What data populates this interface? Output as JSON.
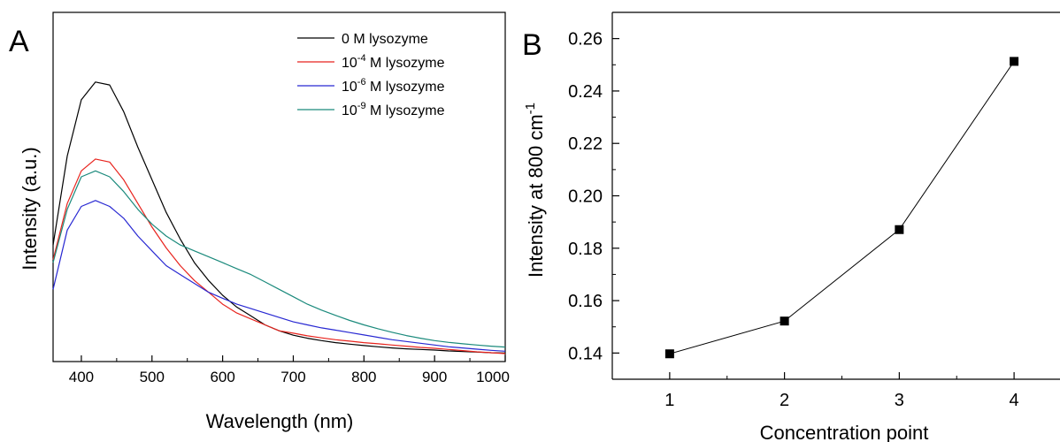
{
  "chart_data": [
    {
      "panel_label": "A",
      "type": "line",
      "xlabel": "Wavelength (nm)",
      "ylabel": "Intensity (a.u.)",
      "xlim": [
        360,
        1000
      ],
      "ylim": [
        0,
        1
      ],
      "x_ticks": [
        400,
        500,
        600,
        700,
        800,
        900,
        1000
      ],
      "y_ticks_shown": false,
      "grid": false,
      "legend_position": "top-right",
      "x": [
        360,
        380,
        400,
        420,
        440,
        460,
        480,
        500,
        520,
        540,
        560,
        580,
        600,
        620,
        640,
        660,
        680,
        700,
        720,
        740,
        760,
        780,
        800,
        820,
        840,
        860,
        880,
        900,
        920,
        940,
        960,
        980,
        1000
      ],
      "series": [
        {
          "legend": {
            "base": "0 M lysozyme",
            "exp": "",
            "rest": ""
          },
          "color": "#000000",
          "values": [
            0.37,
            0.67,
            0.86,
            0.92,
            0.91,
            0.82,
            0.7,
            0.59,
            0.48,
            0.39,
            0.31,
            0.25,
            0.2,
            0.16,
            0.13,
            0.1,
            0.08,
            0.065,
            0.055,
            0.047,
            0.04,
            0.035,
            0.03,
            0.026,
            0.022,
            0.019,
            0.017,
            0.015,
            0.012,
            0.01,
            0.008,
            0.006,
            0.005
          ]
        },
        {
          "legend": {
            "base": "10",
            "exp": "-4",
            "rest": " M lysozyme"
          },
          "color": "#e8231d",
          "values": [
            0.32,
            0.51,
            0.62,
            0.66,
            0.65,
            0.59,
            0.51,
            0.43,
            0.36,
            0.3,
            0.25,
            0.21,
            0.17,
            0.14,
            0.12,
            0.1,
            0.08,
            0.072,
            0.063,
            0.056,
            0.05,
            0.045,
            0.04,
            0.036,
            0.032,
            0.028,
            0.024,
            0.021,
            0.017,
            0.013,
            0.009,
            0.006,
            0.003
          ]
        },
        {
          "legend": {
            "base": "10",
            "exp": "-6",
            "rest": " M lysozyme"
          },
          "color": "#2828d2",
          "values": [
            0.22,
            0.42,
            0.5,
            0.52,
            0.5,
            0.46,
            0.4,
            0.35,
            0.3,
            0.27,
            0.24,
            0.21,
            0.19,
            0.17,
            0.155,
            0.14,
            0.125,
            0.11,
            0.1,
            0.09,
            0.082,
            0.074,
            0.066,
            0.058,
            0.05,
            0.044,
            0.038,
            0.032,
            0.026,
            0.022,
            0.018,
            0.014,
            0.011
          ]
        },
        {
          "legend": {
            "base": "10",
            "exp": "-9",
            "rest": " M lysozyme"
          },
          "color": "#1b8a7c",
          "values": [
            0.31,
            0.49,
            0.6,
            0.62,
            0.6,
            0.55,
            0.49,
            0.44,
            0.4,
            0.37,
            0.35,
            0.33,
            0.31,
            0.29,
            0.27,
            0.245,
            0.22,
            0.195,
            0.17,
            0.15,
            0.132,
            0.115,
            0.1,
            0.087,
            0.075,
            0.064,
            0.055,
            0.047,
            0.041,
            0.036,
            0.032,
            0.028,
            0.025
          ]
        }
      ]
    },
    {
      "panel_label": "B",
      "type": "line",
      "markers": "square",
      "xlabel": "Concentration point",
      "ylabel": {
        "base": "Intensity at 800 cm",
        "exp": "-1"
      },
      "xlim": [
        0.5,
        4.4
      ],
      "ylim": [
        0.13,
        0.27
      ],
      "x_ticks": [
        1,
        2,
        3,
        4
      ],
      "y_ticks": [
        "0.14",
        "0.16",
        "0.18",
        "0.20",
        "0.22",
        "0.24",
        "0.26"
      ],
      "grid": false,
      "categories": [
        1,
        2,
        3,
        4
      ],
      "values": [
        0.1397,
        0.1522,
        0.1871,
        0.2513
      ]
    }
  ]
}
